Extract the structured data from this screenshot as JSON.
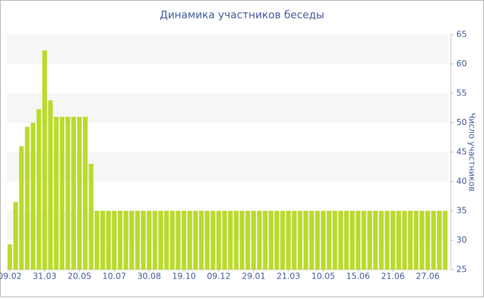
{
  "chart_data": {
    "type": "bar",
    "title": "Динамика участников беседы",
    "y_label": "Число участников",
    "categories": [
      "09.02",
      null,
      null,
      null,
      null,
      null,
      "31.03",
      null,
      null,
      null,
      null,
      null,
      "20.05",
      null,
      null,
      null,
      null,
      null,
      "10.07",
      null,
      null,
      null,
      null,
      null,
      "30.08",
      null,
      null,
      null,
      null,
      null,
      "19.10",
      null,
      null,
      null,
      null,
      null,
      "09.12",
      null,
      null,
      null,
      null,
      null,
      "29.01",
      null,
      null,
      null,
      null,
      null,
      "21.03",
      null,
      null,
      null,
      null,
      null,
      "10.05",
      null,
      null,
      null,
      null,
      null,
      "15.06",
      null,
      null,
      null,
      null,
      null,
      "21.06",
      null,
      null,
      null,
      null,
      null,
      "27.06",
      null,
      null,
      null
    ],
    "values": [
      29.3,
      36.5,
      46,
      49.3,
      50,
      52.3,
      62.3,
      53.8,
      51,
      51,
      51,
      51,
      51,
      51,
      43,
      35,
      35,
      35,
      35,
      35,
      35,
      35,
      35,
      35,
      35,
      35,
      35,
      35,
      35,
      35,
      35,
      35,
      35,
      35,
      35,
      35,
      35,
      35,
      35,
      35,
      35,
      35,
      35,
      35,
      35,
      35,
      35,
      35,
      35,
      35,
      35,
      35,
      35,
      35,
      35,
      35,
      35,
      35,
      35,
      35,
      35,
      35,
      35,
      35,
      35,
      35,
      35,
      35,
      35,
      35,
      35,
      35,
      35,
      35,
      35,
      35
    ],
    "color": "#bada2c",
    "ylim": [
      25,
      65
    ],
    "yticks": [
      25,
      30,
      35,
      40,
      45,
      50,
      55,
      60,
      65
    ],
    "grid": "bands",
    "band_color": "#f6f6f6",
    "y_axis_side": "right"
  }
}
